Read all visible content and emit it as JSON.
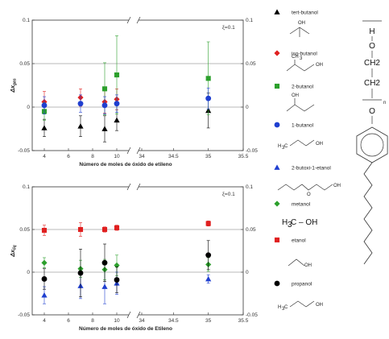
{
  "chart_data": [
    {
      "type": "scatter",
      "title": "",
      "annotation": "ξ=0.1",
      "xlabel": "Número de moles de óxido de etileno",
      "ylabel": "Δx_{gas}",
      "xlim": [
        3,
        35.5
      ],
      "xticks": [
        "4",
        "6",
        "8",
        "10",
        "34",
        "34.5",
        "35",
        "35.5"
      ],
      "ylim": [
        -0.05,
        0.1
      ],
      "yticks": [
        "-0.05",
        "0",
        "0.05",
        "0.1"
      ],
      "right_yticks": [
        "-0.05",
        "0",
        "0.05",
        "0.1"
      ],
      "broken_axis": true,
      "grid_lines_y": [
        0,
        0.05
      ],
      "series": [
        {
          "name": "tert-butanol",
          "marker": "triangle",
          "color": "#000000",
          "points": [
            {
              "x": 4,
              "y": -0.024,
              "err": 0.01
            },
            {
              "x": 7,
              "y": -0.022,
              "err": 0.012
            },
            {
              "x": 9,
              "y": -0.025,
              "err": 0.015
            },
            {
              "x": 10,
              "y": -0.015,
              "err": 0.012
            },
            {
              "x": 35,
              "y": -0.004,
              "err": 0.02
            }
          ]
        },
        {
          "name": "iso-butanol",
          "marker": "diamond",
          "color": "#e02020",
          "points": [
            {
              "x": 4,
              "y": 0.006,
              "err": 0.012
            },
            {
              "x": 7,
              "y": 0.011,
              "err": 0.01
            },
            {
              "x": 9,
              "y": 0.006,
              "err": 0.013
            },
            {
              "x": 10,
              "y": 0.009,
              "err": 0.012
            }
          ]
        },
        {
          "name": "2-butanol",
          "marker": "square",
          "color": "#2ca02c",
          "points": [
            {
              "x": 4,
              "y": -0.005,
              "err": 0.01
            },
            {
              "x": 9,
              "y": 0.021,
              "err": 0.03
            },
            {
              "x": 10,
              "y": 0.037,
              "err": 0.045
            },
            {
              "x": 35,
              "y": 0.033,
              "err": 0.042
            }
          ]
        },
        {
          "name": "1-butanol",
          "marker": "circle",
          "color": "#1f3fd0",
          "points": [
            {
              "x": 4,
              "y": 0.002,
              "err": 0.01
            },
            {
              "x": 7,
              "y": 0.004,
              "err": 0.01
            },
            {
              "x": 9,
              "y": 0.002,
              "err": 0.01
            },
            {
              "x": 10,
              "y": 0.004,
              "err": 0.01
            },
            {
              "x": 35,
              "y": 0.01,
              "err": 0.012
            }
          ]
        }
      ]
    },
    {
      "type": "scatter",
      "title": "",
      "annotation": "ξ=0.1",
      "xlabel": "Número de moles de óxido de Etileno",
      "ylabel": "Δx_{liq}",
      "xlim": [
        3,
        35.5
      ],
      "xticks": [
        "4",
        "6",
        "8",
        "10",
        "34",
        "34.5",
        "35",
        "35.5"
      ],
      "ylim": [
        -0.05,
        0.1
      ],
      "yticks": [
        "-0.05",
        "0",
        "0.05",
        "0.1"
      ],
      "right_yticks": [
        "-0.05",
        "0",
        "0.05",
        "0.1"
      ],
      "broken_axis": true,
      "grid_lines_y": [
        0,
        0.05
      ],
      "series": [
        {
          "name": "2-butoxi-1-etanol",
          "marker": "triangle",
          "color": "#1f3fd0",
          "points": [
            {
              "x": 4,
              "y": -0.027,
              "err": 0.01
            },
            {
              "x": 7,
              "y": -0.016,
              "err": 0.015
            },
            {
              "x": 9,
              "y": -0.017,
              "err": 0.02
            },
            {
              "x": 10,
              "y": -0.013,
              "err": 0.013
            },
            {
              "x": 35,
              "y": -0.008,
              "err": 0.005
            }
          ]
        },
        {
          "name": "metanol",
          "marker": "diamond",
          "color": "#2ca02c",
          "points": [
            {
              "x": 4,
              "y": 0.011,
              "err": 0.006
            },
            {
              "x": 7,
              "y": 0.004,
              "err": 0.01
            },
            {
              "x": 9,
              "y": 0.003,
              "err": 0.012
            },
            {
              "x": 10,
              "y": 0.008,
              "err": 0.012
            },
            {
              "x": 35,
              "y": 0.009,
              "err": 0.008
            }
          ]
        },
        {
          "name": "etanol",
          "marker": "square",
          "color": "#e02020",
          "points": [
            {
              "x": 4,
              "y": 0.049,
              "err": 0.006
            },
            {
              "x": 7,
              "y": 0.05,
              "err": 0.008
            },
            {
              "x": 9,
              "y": 0.05,
              "err": 0.003
            },
            {
              "x": 10,
              "y": 0.052,
              "err": 0.003
            },
            {
              "x": 35,
              "y": 0.057,
              "err": 0.003
            }
          ]
        },
        {
          "name": "propanol",
          "marker": "circle",
          "color": "#000000",
          "points": [
            {
              "x": 4,
              "y": -0.008,
              "err": 0.012
            },
            {
              "x": 7,
              "y": -0.001,
              "err": 0.028
            },
            {
              "x": 9,
              "y": 0.011,
              "err": 0.022
            },
            {
              "x": 10,
              "y": -0.009,
              "err": 0.015
            },
            {
              "x": 35,
              "y": 0.02,
              "err": 0.017
            }
          ]
        }
      ]
    }
  ],
  "legend": [
    {
      "label": "tert-butanol",
      "marker": "triangle",
      "color": "#000000",
      "formula": "OH"
    },
    {
      "label": "iso-butanol",
      "marker": "diamond",
      "color": "#e02020",
      "formula": "CH3 / OH"
    },
    {
      "label": "2-butanol",
      "marker": "square",
      "color": "#2ca02c",
      "formula": "OH"
    },
    {
      "label": "1-butanol",
      "marker": "circle",
      "color": "#1f3fd0",
      "formula": "H3C / OH"
    },
    {
      "label": "2-butoxi-1-etanol",
      "marker": "triangle",
      "color": "#1f3fd0",
      "formula": "O / OH"
    },
    {
      "label": "metanol",
      "marker": "diamond",
      "color": "#2ca02c",
      "formula": "H3C-OH"
    },
    {
      "label": "etanol",
      "marker": "square",
      "color": "#e02020",
      "formula": "OH"
    },
    {
      "label": "propanol",
      "marker": "circle",
      "color": "#000000",
      "formula": "H3C / OH"
    }
  ],
  "structure": {
    "atoms": [
      "H",
      "O",
      "CH2",
      "CH2",
      "n",
      "O"
    ],
    "colors": {
      "bond": "#333333",
      "n": "#e02020"
    }
  }
}
